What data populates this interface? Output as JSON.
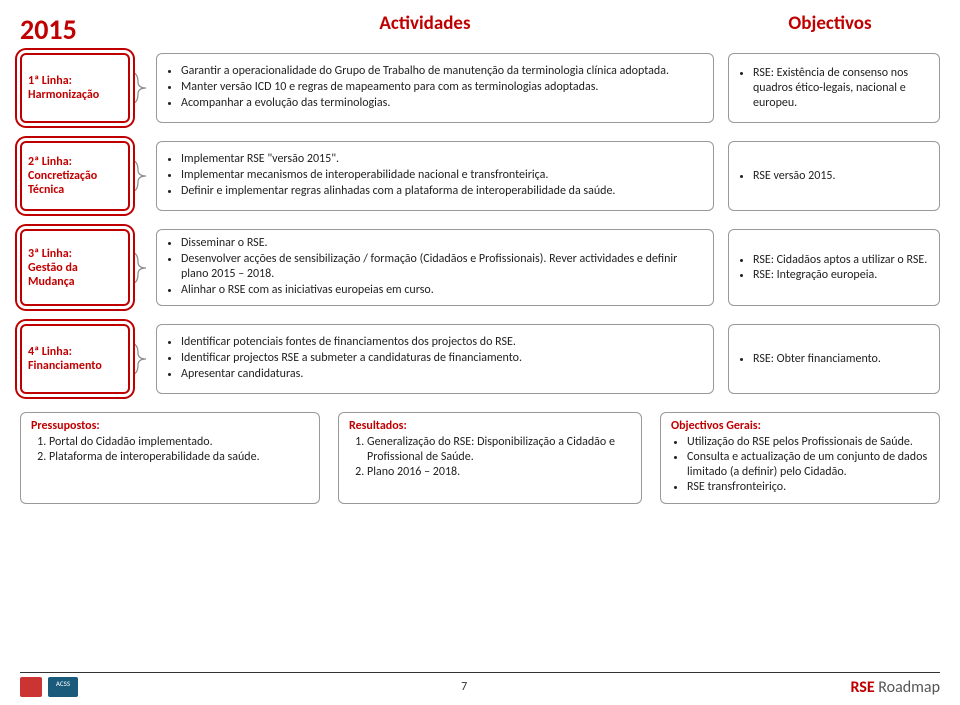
{
  "header": {
    "year": "2015",
    "activities": "Actividades",
    "objectives": "Objectivos"
  },
  "rows": [
    {
      "label_l1": "1ª Linha:",
      "label_l2": "Harmonização",
      "act": [
        "Garantir a operacionalidade do Grupo de Trabalho de manutenção da terminologia clínica adoptada.",
        "Manter versão ICD 10 e regras de mapeamento para com as terminologias adoptadas.",
        "Acompanhar a evolução das terminologias."
      ],
      "obj": [
        "RSE: Existência de consenso nos quadros ético-legais, nacional e europeu."
      ]
    },
    {
      "label_l1": "2ª Linha:",
      "label_l2": "Concretização",
      "label_l3": "Técnica",
      "act": [
        "Implementar RSE \"versão 2015\".",
        "Implementar mecanismos de interoperabilidade nacional e transfronteiriça.",
        "Definir e implementar regras alinhadas com a plataforma de interoperabilidade da saúde."
      ],
      "obj": [
        "RSE versão 2015."
      ]
    },
    {
      "label_l1": "3ª Linha:",
      "label_l2": "Gestão da",
      "label_l3": "Mudança",
      "act": [
        "Disseminar o RSE.",
        "Desenvolver acções de sensibilização / formação (Cidadãos e Profissionais). Rever actividades e definir plano 2015 – 2018.",
        "Alinhar o RSE com as iniciativas europeias em curso."
      ],
      "obj": [
        "RSE: Cidadãos aptos a utilizar o RSE.",
        "RSE: Integração europeia."
      ]
    },
    {
      "label_l1": "4ª Linha:",
      "label_l2": "Financiamento",
      "act": [
        "Identificar potenciais fontes de financiamentos dos projectos do RSE.",
        "Identificar projectos RSE a submeter a candidaturas de financiamento.",
        "Apresentar candidaturas."
      ],
      "obj": [
        "RSE: Obter financiamento."
      ]
    }
  ],
  "bottom": {
    "pressupostos_title": "Pressupostos:",
    "pressupostos": [
      "Portal do Cidadão implementado.",
      "Plataforma de interoperabilidade da saúde."
    ],
    "resultados_title": "Resultados:",
    "resultados": [
      "Generalização do RSE: Disponibilização a Cidadão e Profissional de Saúde.",
      "Plano 2016 – 2018."
    ],
    "objgerais_title": "Objectivos Gerais:",
    "objgerais": [
      "Utilização do RSE pelos Profissionais de Saúde.",
      "Consulta e actualização de um conjunto de dados limitado (a definir) pelo Cidadão.",
      "RSE transfronteiriço."
    ]
  },
  "footer": {
    "page": "7",
    "brand_rse": "RSE",
    "brand_roadmap": " Roadmap",
    "logo2": "ACSS"
  }
}
